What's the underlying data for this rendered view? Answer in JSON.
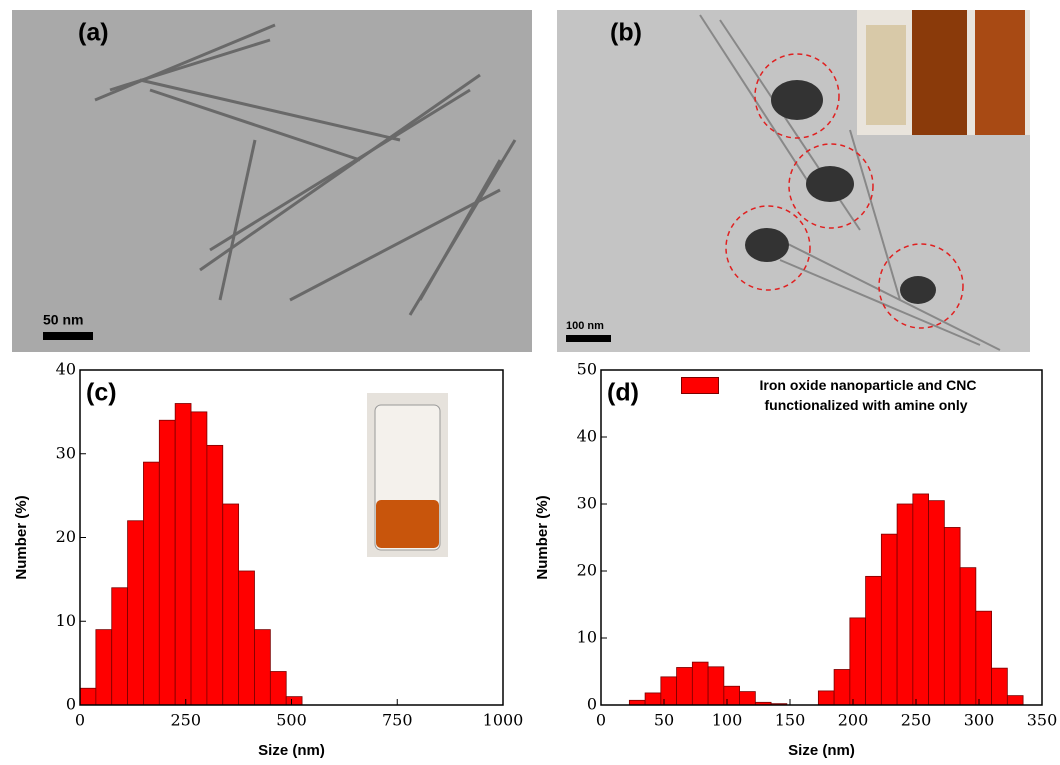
{
  "images": [
    {
      "label": "(a)",
      "scale_bar": "50 nm"
    },
    {
      "label": "(b)",
      "scale_bar": "100 nm"
    }
  ],
  "chart_data": [
    {
      "type": "histogram",
      "annotation": "(c)",
      "xlabel": "Size (nm)",
      "ylabel": "Number (%)",
      "bins": [
        0,
        37.5,
        75,
        112.5,
        150,
        187.5,
        225,
        262.5,
        300,
        337.5,
        375,
        412.5,
        450,
        487.5,
        525
      ],
      "values": [
        2,
        9,
        14,
        22,
        29,
        34,
        36,
        35,
        31,
        24,
        16,
        9,
        4,
        1
      ],
      "color": "#ff0000",
      "xlim": [
        0,
        1000
      ],
      "xticks": [
        0,
        250,
        500,
        750,
        1000
      ],
      "ylim": [
        0,
        40
      ],
      "yticks": [
        0,
        10,
        20,
        30,
        40
      ]
    },
    {
      "type": "histogram",
      "annotation": "(d)",
      "xlabel": "Size (nm)",
      "ylabel": "Number (%)",
      "series": [
        {
          "name": "Iron oxide nanoparticle and CNC functionalized with amine only",
          "color": "#ff0000",
          "values": [
            0.7,
            1.8,
            4.2,
            5.6,
            6.4,
            5.7,
            2.8,
            2.0,
            0.4,
            0.2,
            0,
            0,
            2.1,
            5.3,
            13,
            19.2,
            25.5,
            30,
            31.5,
            30.5,
            26.5,
            20.5,
            14,
            5.5,
            1.4
          ]
        }
      ],
      "bins": [
        22.5,
        35,
        47.5,
        60,
        72.5,
        85,
        97.5,
        110,
        122.5,
        135,
        147.5,
        160,
        172.5,
        185,
        197.5,
        210,
        222.5,
        235,
        247.5,
        260,
        272.5,
        285,
        297.5,
        310,
        322.5,
        335
      ],
      "xlim": [
        0,
        350
      ],
      "xticks": [
        0,
        50,
        100,
        150,
        200,
        250,
        300,
        350
      ],
      "ylim": [
        0,
        50
      ],
      "yticks": [
        0,
        10,
        20,
        30,
        40,
        50
      ]
    }
  ]
}
